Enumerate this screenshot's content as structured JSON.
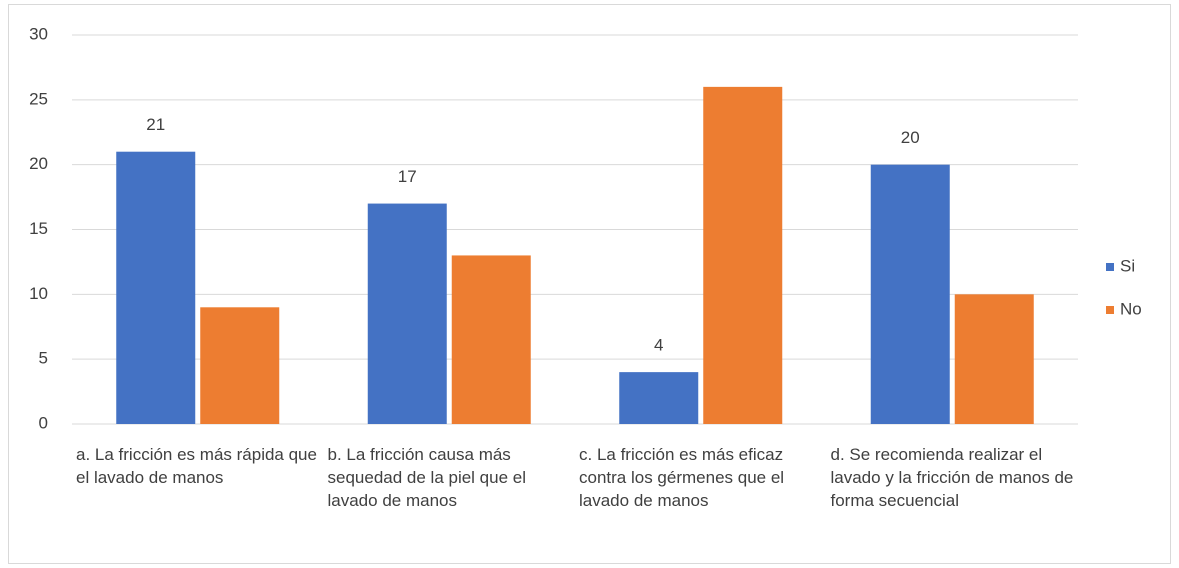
{
  "chart_data": {
    "type": "bar",
    "categories": [
      "a. La fricción es más rápida que el lavado de manos",
      "b. La fricción causa más sequedad de la piel que el lavado de manos",
      "c. La fricción es más eficaz contra los gérmenes que el lavado de manos",
      "d. Se recomienda realizar el lavado y la fricción de manos de forma secuencial"
    ],
    "series": [
      {
        "name": "Si",
        "color": "#4472c4",
        "values": [
          21,
          17,
          4,
          20
        ],
        "data_labels": true
      },
      {
        "name": "No",
        "color": "#ed7d31",
        "values": [
          9,
          13,
          26,
          10
        ],
        "data_labels": false
      }
    ],
    "ylim": [
      0,
      30
    ],
    "yticks": [
      0,
      5,
      10,
      15,
      20,
      25,
      30
    ],
    "grid": true,
    "legend": "right"
  }
}
